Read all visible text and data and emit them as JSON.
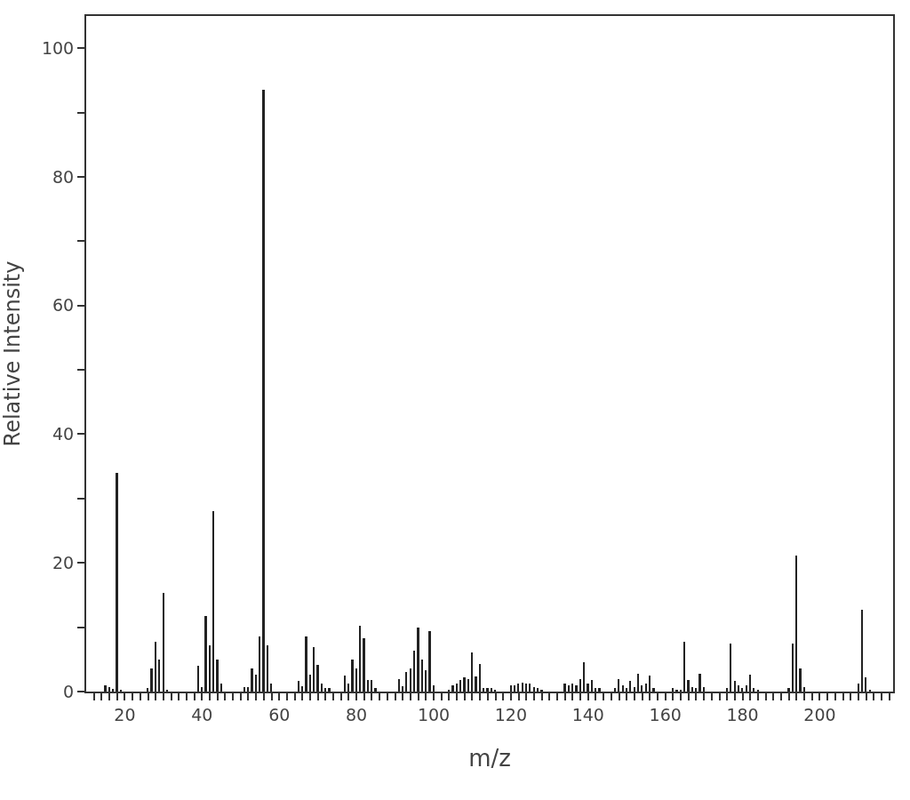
{
  "chart_data": {
    "type": "bar",
    "xlabel": "m/z",
    "ylabel": "Relative Intensity",
    "color": "#222222",
    "x": [
      15,
      16,
      17,
      18,
      19,
      26,
      27,
      28,
      29,
      30,
      31,
      39,
      40,
      41,
      42,
      43,
      44,
      45,
      51,
      52,
      53,
      54,
      55,
      56,
      57,
      58,
      65,
      66,
      67,
      68,
      69,
      70,
      71,
      72,
      73,
      77,
      78,
      79,
      80,
      81,
      82,
      83,
      84,
      85,
      91,
      92,
      93,
      94,
      95,
      96,
      97,
      98,
      99,
      100,
      104,
      105,
      106,
      107,
      108,
      109,
      110,
      111,
      112,
      113,
      114,
      115,
      116,
      120,
      121,
      122,
      123,
      124,
      125,
      126,
      127,
      128,
      134,
      135,
      136,
      137,
      138,
      139,
      140,
      141,
      142,
      143,
      147,
      148,
      149,
      150,
      151,
      152,
      153,
      154,
      155,
      156,
      157,
      162,
      163,
      164,
      165,
      166,
      167,
      168,
      169,
      170,
      176,
      177,
      178,
      179,
      180,
      181,
      182,
      183,
      184,
      192,
      193,
      194,
      195,
      196,
      210,
      211,
      212,
      213
    ],
    "values": [
      1.0,
      0.7,
      0.4,
      34,
      0.3,
      0.5,
      3.6,
      7.8,
      5.0,
      15.4,
      0.3,
      4.0,
      0.7,
      11.7,
      7.2,
      28,
      5.0,
      1.2,
      0.7,
      0.7,
      3.6,
      2.6,
      8.6,
      93.5,
      7.2,
      1.2,
      1.6,
      0.8,
      8.6,
      2.6,
      6.9,
      4.2,
      1.2,
      0.6,
      0.6,
      2.5,
      1.2,
      5.0,
      3.6,
      10.2,
      8.3,
      1.8,
      1.8,
      0.5,
      1.9,
      0.8,
      3.0,
      3.6,
      6.4,
      9.9,
      5.0,
      3.3,
      9.4,
      0.9,
      0.3,
      1.0,
      1.2,
      1.8,
      2.2,
      1.9,
      6.1,
      2.4,
      4.3,
      0.6,
      0.5,
      0.5,
      0.3,
      1.0,
      1.0,
      1.2,
      1.4,
      1.2,
      1.2,
      0.7,
      0.6,
      0.3,
      1.2,
      1.0,
      1.2,
      1.0,
      1.9,
      4.5,
      1.2,
      1.8,
      0.5,
      0.5,
      0.5,
      1.9,
      1.0,
      0.5,
      1.6,
      0.7,
      2.8,
      1.0,
      1.2,
      2.5,
      0.5,
      0.5,
      0.3,
      0.3,
      7.8,
      1.8,
      0.7,
      0.5,
      2.8,
      0.7,
      0.5,
      7.4,
      1.6,
      1.0,
      0.5,
      0.9,
      2.6,
      0.5,
      0.3,
      0.5,
      7.4,
      21.2,
      3.6,
      0.7,
      1.3,
      12.7,
      2.2,
      0.3
    ],
    "xlim": [
      10,
      219
    ],
    "ylim": [
      0,
      105
    ],
    "xticks": [
      {
        "value": 12,
        "label": null
      },
      {
        "value": 14,
        "label": null
      },
      {
        "value": 16,
        "label": null
      },
      {
        "value": 18,
        "label": null
      },
      20,
      {
        "value": 22,
        "label": null
      },
      {
        "value": 24,
        "label": null
      },
      {
        "value": 26,
        "label": null
      },
      {
        "value": 28,
        "label": null
      },
      {
        "value": 30,
        "label": null
      },
      {
        "value": 32,
        "label": null
      },
      {
        "value": 34,
        "label": null
      },
      {
        "value": 36,
        "label": null
      },
      {
        "value": 38,
        "label": null
      },
      40,
      {
        "value": 42,
        "label": null
      },
      {
        "value": 44,
        "label": null
      },
      {
        "value": 46,
        "label": null
      },
      {
        "value": 48,
        "label": null
      },
      {
        "value": 50,
        "label": null
      },
      {
        "value": 52,
        "label": null
      },
      {
        "value": 54,
        "label": null
      },
      {
        "value": 56,
        "label": null
      },
      {
        "value": 58,
        "label": null
      },
      60,
      {
        "value": 62,
        "label": null
      },
      {
        "value": 64,
        "label": null
      },
      {
        "value": 66,
        "label": null
      },
      {
        "value": 68,
        "label": null
      },
      {
        "value": 70,
        "label": null
      },
      {
        "value": 72,
        "label": null
      },
      {
        "value": 74,
        "label": null
      },
      {
        "value": 76,
        "label": null
      },
      {
        "value": 78,
        "label": null
      },
      80,
      {
        "value": 82,
        "label": null
      },
      {
        "value": 84,
        "label": null
      },
      {
        "value": 86,
        "label": null
      },
      {
        "value": 88,
        "label": null
      },
      {
        "value": 90,
        "label": null
      },
      {
        "value": 92,
        "label": null
      },
      {
        "value": 94,
        "label": null
      },
      {
        "value": 96,
        "label": null
      },
      {
        "value": 98,
        "label": null
      },
      100,
      {
        "value": 102,
        "label": null
      },
      {
        "value": 104,
        "label": null
      },
      {
        "value": 106,
        "label": null
      },
      {
        "value": 108,
        "label": null
      },
      {
        "value": 110,
        "label": null
      },
      {
        "value": 112,
        "label": null
      },
      {
        "value": 114,
        "label": null
      },
      {
        "value": 116,
        "label": null
      },
      {
        "value": 118,
        "label": null
      },
      120,
      {
        "value": 122,
        "label": null
      },
      {
        "value": 124,
        "label": null
      },
      {
        "value": 126,
        "label": null
      },
      {
        "value": 128,
        "label": null
      },
      {
        "value": 130,
        "label": null
      },
      {
        "value": 132,
        "label": null
      },
      {
        "value": 134,
        "label": null
      },
      {
        "value": 136,
        "label": null
      },
      {
        "value": 138,
        "label": null
      },
      140,
      {
        "value": 142,
        "label": null
      },
      {
        "value": 144,
        "label": null
      },
      {
        "value": 146,
        "label": null
      },
      {
        "value": 148,
        "label": null
      },
      {
        "value": 150,
        "label": null
      },
      {
        "value": 152,
        "label": null
      },
      {
        "value": 154,
        "label": null
      },
      {
        "value": 156,
        "label": null
      },
      {
        "value": 158,
        "label": null
      },
      160,
      {
        "value": 162,
        "label": null
      },
      {
        "value": 164,
        "label": null
      },
      {
        "value": 166,
        "label": null
      },
      {
        "value": 168,
        "label": null
      },
      {
        "value": 170,
        "label": null
      },
      {
        "value": 172,
        "label": null
      },
      {
        "value": 174,
        "label": null
      },
      {
        "value": 176,
        "label": null
      },
      {
        "value": 178,
        "label": null
      },
      180,
      {
        "value": 182,
        "label": null
      },
      {
        "value": 184,
        "label": null
      },
      {
        "value": 186,
        "label": null
      },
      {
        "value": 188,
        "label": null
      },
      {
        "value": 190,
        "label": null
      },
      {
        "value": 192,
        "label": null
      },
      {
        "value": 194,
        "label": null
      },
      {
        "value": 196,
        "label": null
      },
      {
        "value": 198,
        "label": null
      },
      200,
      {
        "value": 202,
        "label": null
      },
      {
        "value": 204,
        "label": null
      },
      {
        "value": 206,
        "label": null
      },
      {
        "value": 208,
        "label": null
      },
      {
        "value": 210,
        "label": null
      },
      {
        "value": 212,
        "label": null
      },
      {
        "value": 214,
        "label": null
      },
      {
        "value": 216,
        "label": null
      },
      {
        "value": 218,
        "label": null
      }
    ],
    "yticks": [
      0,
      {
        "value": 10,
        "label": null
      },
      20,
      {
        "value": 30,
        "label": null
      },
      40,
      {
        "value": 50,
        "label": null
      },
      60,
      {
        "value": 70,
        "label": null
      },
      80,
      {
        "value": 90,
        "label": null
      },
      100
    ],
    "grid": false
  }
}
